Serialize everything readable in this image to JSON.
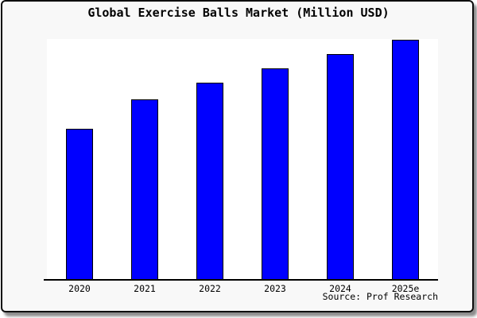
{
  "title": "Global Exercise Balls Market (Million USD)",
  "source": "Source: Prof Research",
  "chart_data": {
    "type": "bar",
    "title": "Global Exercise Balls Market (Million USD)",
    "categories": [
      "2020",
      "2021",
      "2022",
      "2023",
      "2024",
      "2025e"
    ],
    "values": [
      63,
      75,
      82,
      88,
      94,
      100
    ],
    "values_note": "No y-axis ticks or data labels shown; values are estimated relative bar heights with tallest bar (2025e) = 100",
    "xlabel": "",
    "ylabel": "",
    "ylim": [
      0,
      105
    ],
    "grid": false,
    "legend": false,
    "annotations": [
      "Source: Prof Research"
    ],
    "bar_color": "#0000ff",
    "bar_border_color": "#000000"
  },
  "colors": {
    "canvas_background": "#f8f8f8",
    "plot_background": "#ffffff",
    "bar_fill": "#0000ff",
    "axis_line": "#000000",
    "frame_border": "#0d0d0d"
  }
}
